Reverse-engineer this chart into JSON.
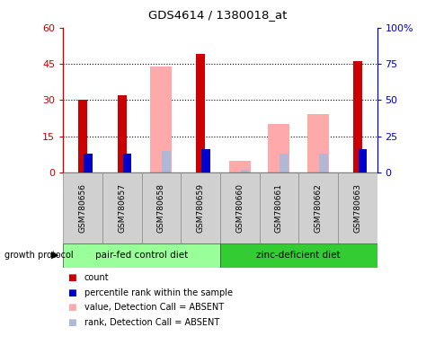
{
  "title": "GDS4614 / 1380018_at",
  "samples": [
    "GSM780656",
    "GSM780657",
    "GSM780658",
    "GSM780659",
    "GSM780660",
    "GSM780661",
    "GSM780662",
    "GSM780663"
  ],
  "count": [
    30,
    32,
    null,
    49,
    null,
    null,
    null,
    46
  ],
  "percentile_rank": [
    13,
    13,
    null,
    16,
    null,
    null,
    null,
    16
  ],
  "value_absent": [
    null,
    null,
    44,
    null,
    5,
    20,
    24,
    null
  ],
  "rank_absent": [
    null,
    null,
    15,
    16,
    2,
    13,
    13,
    16
  ],
  "ylim_left": [
    0,
    60
  ],
  "ylim_right": [
    0,
    100
  ],
  "yticks_left": [
    0,
    15,
    30,
    45,
    60
  ],
  "yticks_right": [
    0,
    25,
    50,
    75,
    100
  ],
  "yticklabels_left": [
    "0",
    "15",
    "30",
    "45",
    "60"
  ],
  "yticklabels_right": [
    "0",
    "25",
    "50",
    "75",
    "100%"
  ],
  "group1_label": "pair-fed control diet",
  "group2_label": "zinc-deficient diet",
  "protocol_label": "growth protocol",
  "group1_indices": [
    0,
    1,
    2,
    3
  ],
  "group2_indices": [
    4,
    5,
    6,
    7
  ],
  "color_count": "#cc0000",
  "color_rank": "#0000cc",
  "color_value_absent": "#ffaaaa",
  "color_rank_absent": "#b0b8d8",
  "group1_color": "#99ff99",
  "group2_color": "#33cc33",
  "sample_box_color": "#d0d0d0",
  "legend_items": [
    {
      "label": "count",
      "color": "#cc0000"
    },
    {
      "label": "percentile rank within the sample",
      "color": "#0000cc"
    },
    {
      "label": "value, Detection Call = ABSENT",
      "color": "#ffaaaa"
    },
    {
      "label": "rank, Detection Call = ABSENT",
      "color": "#b0b8d8"
    }
  ]
}
